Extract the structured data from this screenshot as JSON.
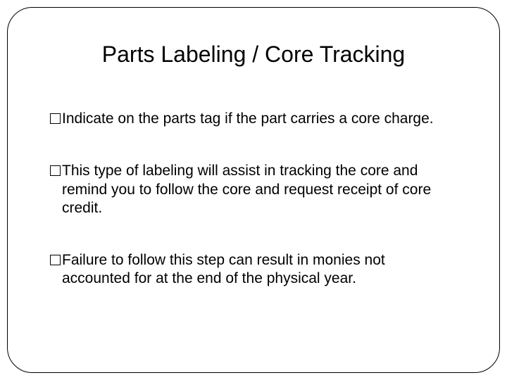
{
  "slide": {
    "title": "Parts Labeling / Core Tracking",
    "bullets": [
      "Indicate on the parts tag if the part carries a core charge.",
      "This type of labeling will assist in tracking the core and remind you to follow the core and request receipt of core credit.",
      "Failure to follow this step can result in monies not accounted for at the end of the physical year."
    ],
    "colors": {
      "background": "#ffffff",
      "text": "#000000",
      "border": "#000000"
    },
    "fonts": {
      "title_size": 32,
      "body_size": 21
    },
    "border_radius": 36
  }
}
